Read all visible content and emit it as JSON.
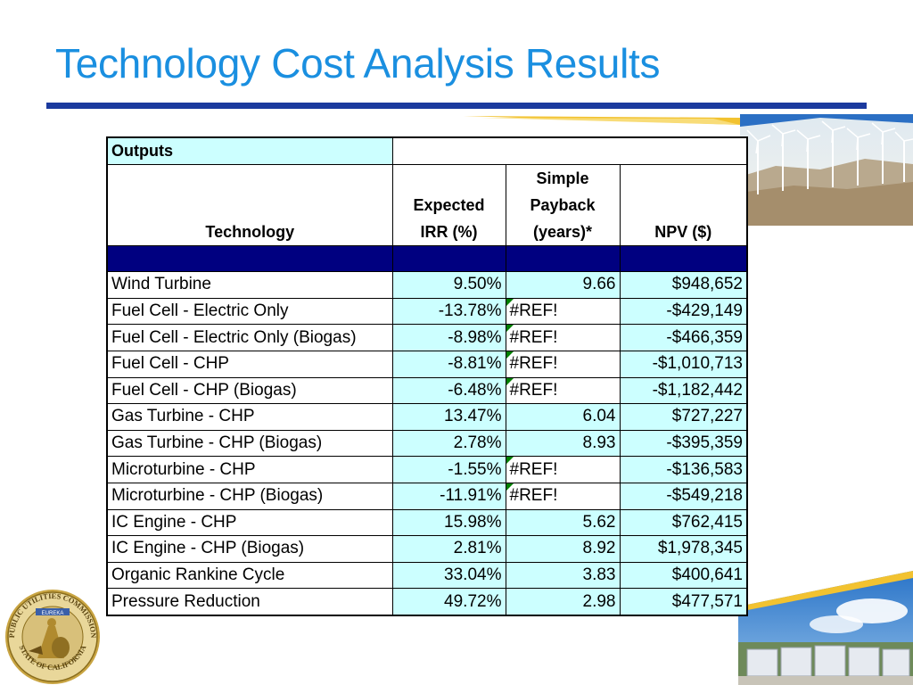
{
  "slide": {
    "title": "Technology Cost Analysis Results"
  },
  "table": {
    "outputs_label": "Outputs",
    "headers": {
      "technology": "Technology",
      "irr_line1": "Expected",
      "irr_line2": "IRR (%)",
      "payback_line1": "Simple",
      "payback_line2": "Payback",
      "payback_line3": "(years)*",
      "npv": "NPV ($)"
    },
    "rows": [
      {
        "technology": "Wind Turbine",
        "irr": "9.50%",
        "payback": "9.66",
        "npv": "$948,652"
      },
      {
        "technology": "Fuel Cell - Electric Only",
        "irr": "-13.78%",
        "payback": "#REF!",
        "npv": "-$429,149"
      },
      {
        "technology": "Fuel Cell - Electric Only (Biogas)",
        "irr": "-8.98%",
        "payback": "#REF!",
        "npv": "-$466,359"
      },
      {
        "technology": "Fuel Cell - CHP",
        "irr": "-8.81%",
        "payback": "#REF!",
        "npv": "-$1,010,713"
      },
      {
        "technology": "Fuel Cell - CHP (Biogas)",
        "irr": "-6.48%",
        "payback": "#REF!",
        "npv": "-$1,182,442"
      },
      {
        "technology": "Gas Turbine - CHP",
        "irr": "13.47%",
        "payback": "6.04",
        "npv": "$727,227"
      },
      {
        "technology": "Gas Turbine - CHP (Biogas)",
        "irr": "2.78%",
        "payback": "8.93",
        "npv": "-$395,359"
      },
      {
        "technology": "Microturbine - CHP",
        "irr": "-1.55%",
        "payback": "#REF!",
        "npv": "-$136,583"
      },
      {
        "technology": "Microturbine - CHP (Biogas)",
        "irr": "-11.91%",
        "payback": "#REF!",
        "npv": "-$549,218"
      },
      {
        "technology": "IC Engine - CHP",
        "irr": "15.98%",
        "payback": "5.62",
        "npv": "$762,415"
      },
      {
        "technology": "IC Engine - CHP (Biogas)",
        "irr": "2.81%",
        "payback": "8.92",
        "npv": "$1,978,345"
      },
      {
        "technology": "Organic Rankine Cycle",
        "irr": "33.04%",
        "payback": "3.83",
        "npv": "$400,641"
      },
      {
        "technology": "Pressure Reduction",
        "irr": "49.72%",
        "payback": "2.98",
        "npv": "$477,571"
      }
    ]
  },
  "logo": {
    "outer_text": "PUBLIC UTILITIES COMMISSION",
    "bottom_text": "STATE OF CALIFORNIA",
    "banner_text": "EUREKA"
  },
  "colors": {
    "title": "#1a8fe0",
    "rule": "#1b3a9e",
    "cell_highlight": "#ccffff",
    "header_band": "#000080",
    "error_flag": "#008000"
  }
}
